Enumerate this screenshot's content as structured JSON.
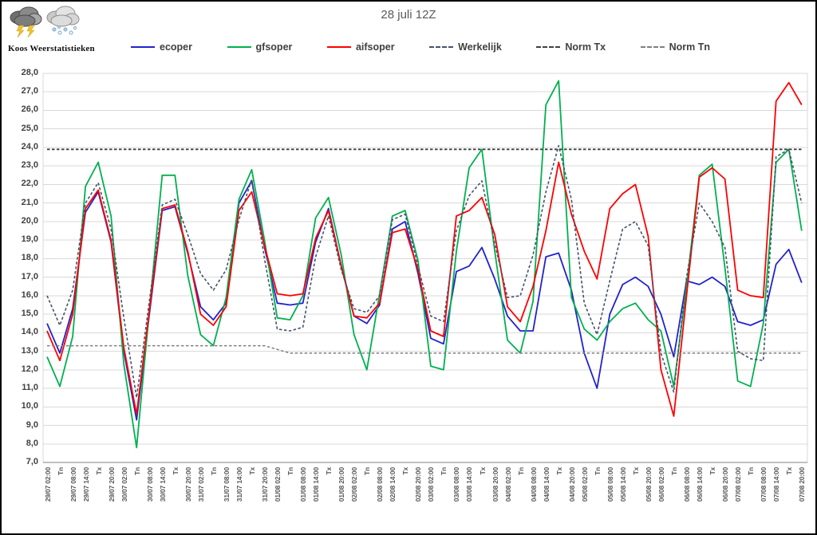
{
  "logo": {
    "text": "Koos Weerstatistieken",
    "icons": [
      "storm-cloud",
      "snow-cloud"
    ]
  },
  "title": "28 juli 12Z",
  "legend": [
    {
      "label": "ecoper",
      "color": "#2222CC",
      "dash": "solid"
    },
    {
      "label": "gfsoper",
      "color": "#00B050",
      "dash": "solid"
    },
    {
      "label": "aifsoper",
      "color": "#FF0000",
      "dash": "solid"
    },
    {
      "label": "Werkelijk",
      "color": "#44546A",
      "dash": "dashed"
    },
    {
      "label": "Norm Tx",
      "color": "#404040",
      "dash": "dashed"
    },
    {
      "label": "Norm Tn",
      "color": "#7F7F7F",
      "dash": "dashed"
    }
  ],
  "chart_data": {
    "type": "line",
    "title": "28 juli 12Z",
    "xlabel": "",
    "ylabel": "",
    "ylim": [
      7,
      28
    ],
    "grid": "horizontal",
    "legend_position": "top",
    "y_ticks": [
      "28,0",
      "27,0",
      "26,0",
      "25,0",
      "24,0",
      "23,0",
      "22,0",
      "21,0",
      "20,0",
      "19,0",
      "18,0",
      "17,0",
      "16,0",
      "15,0",
      "14,0",
      "13,0",
      "12,0",
      "11,0",
      "10,0",
      "9,0",
      "8,0",
      "7,0"
    ],
    "categories": [
      "29/07 02:00",
      "Tn",
      "29/07 08:00",
      "29/07 14:00",
      "Tx",
      "29/07 20:00",
      "30/07 02:00",
      "Tn",
      "30/07 08:00",
      "30/07 14:00",
      "Tx",
      "30/07 20:00",
      "31/07 02:00",
      "Tn",
      "31/07 08:00",
      "31/07 14:00",
      "Tx",
      "31/07 20:00",
      "01/08 02:00",
      "Tn",
      "01/08 08:00",
      "01/08 14:00",
      "Tx",
      "01/08 20:00",
      "02/08 02:00",
      "Tn",
      "02/08 08:00",
      "02/08 14:00",
      "Tx",
      "02/08 20:00",
      "03/08 02:00",
      "Tn",
      "03/08 08:00",
      "03/08 14:00",
      "Tx",
      "03/08 20:00",
      "04/08 02:00",
      "Tn",
      "04/08 08:00",
      "04/08 14:00",
      "Tx",
      "04/08 20:00",
      "05/08 02:00",
      "Tn",
      "05/08 08:00",
      "05/08 14:00",
      "Tx",
      "05/08 20:00",
      "06/08 02:00",
      "Tn",
      "06/08 08:00",
      "06/08 14:00",
      "Tx",
      "06/08 20:00",
      "07/08 02:00",
      "Tn",
      "07/08 08:00",
      "07/08 14:00",
      "Tx",
      "07/08 20:00"
    ],
    "series": [
      {
        "name": "ecoper",
        "color": "#2222CC",
        "style": "solid",
        "width": 1.8,
        "values": [
          14.5,
          12.9,
          15.3,
          20.5,
          21.6,
          18.9,
          13.0,
          9.3,
          15.0,
          20.6,
          20.8,
          18.3,
          15.4,
          14.7,
          15.6,
          21.0,
          22.2,
          18.6,
          15.6,
          15.5,
          15.6,
          18.9,
          20.7,
          17.6,
          14.9,
          14.5,
          15.5,
          19.6,
          20.0,
          17.2,
          13.7,
          13.4,
          17.3,
          17.6,
          18.6,
          16.9,
          14.9,
          14.1,
          14.1,
          18.1,
          18.3,
          16.3,
          12.9,
          11.0,
          15.0,
          16.6,
          17.0,
          16.5,
          15.0,
          12.7,
          16.8,
          16.6,
          17.0,
          16.5,
          14.6,
          14.4,
          14.7,
          17.7,
          18.5,
          16.7
        ]
      },
      {
        "name": "gfsoper",
        "color": "#00B050",
        "style": "solid",
        "width": 1.8,
        "values": [
          12.7,
          11.1,
          13.8,
          21.9,
          23.2,
          20.3,
          12.3,
          7.8,
          15.2,
          22.5,
          22.5,
          17.1,
          13.9,
          13.3,
          15.9,
          21.2,
          22.8,
          19.0,
          14.8,
          14.7,
          16.0,
          20.2,
          21.3,
          18.2,
          13.9,
          12.0,
          16.1,
          20.3,
          20.6,
          17.9,
          12.2,
          12.0,
          18.4,
          22.9,
          23.9,
          18.4,
          13.6,
          12.9,
          15.7,
          26.3,
          27.6,
          15.9,
          14.2,
          13.6,
          14.6,
          15.3,
          15.6,
          14.7,
          14.1,
          11.1,
          16.5,
          22.5,
          23.1,
          17.5,
          11.4,
          11.1,
          14.5,
          23.2,
          23.9,
          19.5
        ]
      },
      {
        "name": "aifsoper",
        "color": "#FF0000",
        "style": "solid",
        "width": 1.8,
        "values": [
          14.1,
          12.5,
          15.0,
          20.7,
          21.7,
          19.0,
          13.2,
          9.6,
          15.2,
          20.7,
          20.9,
          18.4,
          15.0,
          14.4,
          15.4,
          20.6,
          21.6,
          18.7,
          16.1,
          16.0,
          16.1,
          19.1,
          20.6,
          17.6,
          14.9,
          14.8,
          15.6,
          19.4,
          19.6,
          17.4,
          14.1,
          13.8,
          20.3,
          20.6,
          21.3,
          19.3,
          15.4,
          14.6,
          16.5,
          19.5,
          23.2,
          20.4,
          18.4,
          16.9,
          20.7,
          21.5,
          22.0,
          19.2,
          12.0,
          9.5,
          16.0,
          22.4,
          22.9,
          22.3,
          16.3,
          16.0,
          15.9,
          26.5,
          27.5,
          26.3
        ]
      },
      {
        "name": "Werkelijk",
        "color": "#44546A",
        "style": "dashed",
        "width": 1.6,
        "values": [
          16.0,
          14.4,
          16.3,
          21.0,
          22.1,
          19.6,
          14.8,
          10.5,
          15.7,
          20.9,
          21.2,
          19.3,
          17.2,
          16.3,
          17.4,
          20.1,
          22.3,
          18.0,
          14.2,
          14.1,
          14.3,
          18.1,
          20.3,
          17.4,
          15.3,
          15.1,
          16.0,
          20.1,
          20.4,
          17.6,
          14.9,
          14.6,
          19.5,
          21.4,
          22.2,
          18.8,
          15.9,
          16.0,
          18.2,
          21.6,
          24.1,
          21.2,
          15.6,
          13.9,
          16.8,
          19.6,
          20.0,
          18.7,
          12.9,
          10.8,
          17.0,
          21.0,
          20.0,
          18.6,
          13.0,
          12.6,
          12.5,
          23.5,
          23.9,
          21.0
        ]
      },
      {
        "name": "Norm Tx",
        "color": "#404040",
        "style": "dashed",
        "width": 1.8,
        "values": [
          23.9,
          23.9,
          23.9,
          23.9,
          23.9,
          23.9,
          23.9,
          23.9,
          23.9,
          23.9,
          23.9,
          23.9,
          23.9,
          23.9,
          23.9,
          23.9,
          23.9,
          23.9,
          23.9,
          23.9,
          23.9,
          23.9,
          23.9,
          23.9,
          23.9,
          23.9,
          23.9,
          23.9,
          23.9,
          23.9,
          23.9,
          23.9,
          23.9,
          23.9,
          23.9,
          23.9,
          23.9,
          23.9,
          23.9,
          23.9,
          23.9,
          23.9,
          23.9,
          23.9,
          23.9,
          23.9,
          23.9,
          23.9,
          23.9,
          23.9,
          23.9,
          23.9,
          23.9,
          23.9,
          23.9,
          23.9,
          23.9,
          23.9,
          23.9,
          23.9
        ]
      },
      {
        "name": "Norm Tn",
        "color": "#7F7F7F",
        "style": "dashed",
        "width": 1.5,
        "values": [
          13.3,
          13.3,
          13.3,
          13.3,
          13.3,
          13.3,
          13.3,
          13.3,
          13.3,
          13.3,
          13.3,
          13.3,
          13.3,
          13.3,
          13.3,
          13.3,
          13.3,
          13.3,
          13.1,
          12.9,
          12.9,
          12.9,
          12.9,
          12.9,
          12.9,
          12.9,
          12.9,
          12.9,
          12.9,
          12.9,
          12.9,
          12.9,
          12.9,
          12.9,
          12.9,
          12.9,
          12.9,
          12.9,
          12.9,
          12.9,
          12.9,
          12.9,
          12.9,
          12.9,
          12.9,
          12.9,
          12.9,
          12.9,
          12.9,
          12.9,
          12.9,
          12.9,
          12.9,
          12.9,
          12.9,
          12.9,
          12.9,
          12.9,
          12.9,
          12.9
        ]
      }
    ]
  }
}
